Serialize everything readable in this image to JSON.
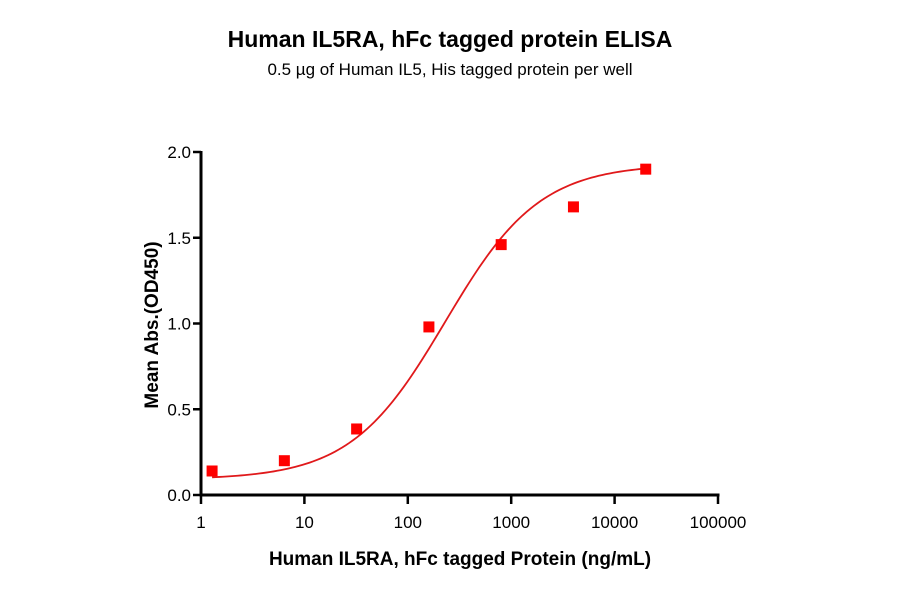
{
  "header": {
    "title": "Human IL5RA, hFc tagged protein ELISA",
    "subtitle": "0.5 µg of Human IL5, His tagged protein per well"
  },
  "chart_data": {
    "type": "scatter",
    "title": "Human IL5RA, hFc tagged protein ELISA",
    "subtitle": "0.5 µg of Human IL5, His tagged protein per well",
    "xlabel": "Human IL5RA, hFc tagged Protein (ng/mL)",
    "ylabel": "Mean Abs.(OD450)",
    "xscale": "log",
    "xlim": [
      1,
      100000
    ],
    "ylim": [
      0,
      2.0
    ],
    "xticks": [
      "1",
      "10",
      "100",
      "1000",
      "10000",
      "100000"
    ],
    "yticks": [
      "0.0",
      "0.5",
      "1.0",
      "1.5",
      "2.0"
    ],
    "grid": false,
    "legend": null,
    "series": [
      {
        "name": "Human IL5RA, hFc tagged protein",
        "marker": "square",
        "color": "#ff0000",
        "x": [
          1.28,
          6.4,
          32,
          160,
          800,
          4000,
          20000
        ],
        "values": [
          0.14,
          0.2,
          0.385,
          0.98,
          1.46,
          1.68,
          1.9
        ]
      }
    ],
    "fit": {
      "type": "4PL sigmoidal curve",
      "color": "#e0191b",
      "bottom": 0.09,
      "top": 1.93,
      "ec50": 230,
      "hill": 0.95
    }
  },
  "colors": {
    "data": "#ff0000",
    "fit": "#e0191b",
    "axis": "#000000"
  }
}
